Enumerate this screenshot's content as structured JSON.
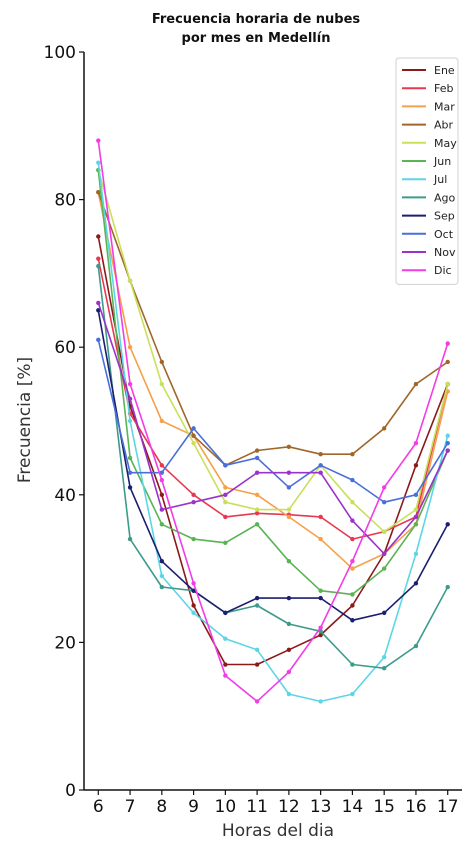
{
  "chart_data": {
    "type": "line",
    "title_line1": "Frecuencia horaria de nubes",
    "title_line2": "por mes en Medellín",
    "xlabel": "Horas del dia",
    "ylabel": "Frecuencia [%]",
    "x": [
      6,
      7,
      8,
      9,
      10,
      11,
      12,
      13,
      14,
      15,
      16,
      17
    ],
    "ylim": [
      0,
      100
    ],
    "yticks": [
      0,
      20,
      40,
      60,
      80,
      100
    ],
    "grid": false,
    "legend_position": "top-right",
    "series": [
      {
        "name": "Ene",
        "color": "#8b1a1a",
        "values": [
          75,
          52,
          40,
          25,
          17,
          17,
          19,
          21,
          25,
          32,
          44,
          55
        ]
      },
      {
        "name": "Feb",
        "color": "#e8384f",
        "values": [
          72,
          51,
          44,
          40,
          37,
          37.5,
          37.3,
          37,
          34,
          35,
          37,
          55
        ]
      },
      {
        "name": "Mar",
        "color": "#f5a04a",
        "values": [
          81,
          60,
          50,
          48,
          41,
          40,
          37,
          34,
          30,
          32,
          36,
          54
        ]
      },
      {
        "name": "Abr",
        "color": "#a0662a",
        "values": [
          81,
          69,
          58,
          48,
          44,
          46,
          46.5,
          45.5,
          45.5,
          49,
          55,
          58
        ]
      },
      {
        "name": "May",
        "color": "#c9e05a",
        "values": [
          84,
          69,
          55,
          47,
          39,
          38,
          38,
          44,
          39,
          35,
          38,
          55
        ]
      },
      {
        "name": "Jun",
        "color": "#5ab354",
        "values": [
          84,
          45,
          36,
          34,
          33.5,
          36,
          31,
          27,
          26.5,
          30,
          36,
          46
        ]
      },
      {
        "name": "Jul",
        "color": "#5cd6e6",
        "values": [
          85,
          50,
          29,
          24,
          20.5,
          19,
          13,
          12,
          13,
          18,
          32,
          48
        ]
      },
      {
        "name": "Ago",
        "color": "#3d9b8b",
        "values": [
          71,
          34,
          27.5,
          27,
          24,
          25,
          22.5,
          21.5,
          17,
          16.5,
          19.5,
          27.5
        ]
      },
      {
        "name": "Sep",
        "color": "#1a1f6e",
        "values": [
          65,
          41,
          31,
          27,
          24,
          26,
          26,
          26,
          23,
          24,
          28,
          36
        ]
      },
      {
        "name": "Oct",
        "color": "#4a6fd9",
        "values": [
          61,
          43,
          43,
          49,
          44,
          45,
          41,
          44,
          42,
          39,
          40,
          47
        ]
      },
      {
        "name": "Nov",
        "color": "#9b32c9",
        "values": [
          66,
          53,
          38,
          39,
          40,
          43,
          43,
          43,
          36.5,
          32,
          37,
          46
        ]
      },
      {
        "name": "Dic",
        "color": "#f23ce6",
        "values": [
          88,
          55,
          42,
          28,
          15.5,
          12,
          16,
          22,
          31,
          41,
          47,
          60.5
        ]
      }
    ]
  }
}
